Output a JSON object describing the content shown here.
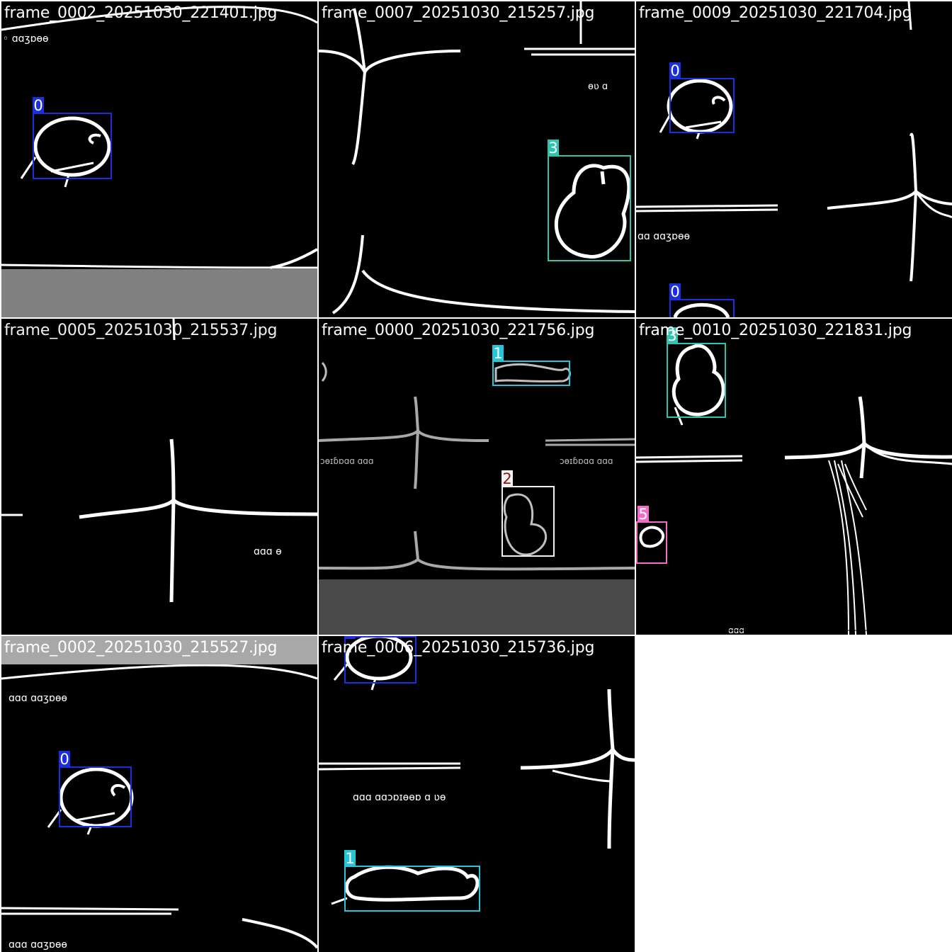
{
  "mosaic": {
    "tiles": [
      {
        "filename": "frame_0002_20251030_221401.jpg",
        "boxes": [
          {
            "class_id": "0",
            "color": "#1a2fe0"
          }
        ]
      },
      {
        "filename": "frame_0007_20251030_215257.jpg",
        "boxes": [
          {
            "class_id": "3",
            "color": "#2ec4b0"
          }
        ]
      },
      {
        "filename": "frame_0009_20251030_221704.jpg",
        "boxes": [
          {
            "class_id": "0",
            "color": "#1a2fe0"
          },
          {
            "class_id": "0",
            "color": "#1a2fe0"
          }
        ]
      },
      {
        "filename": "frame_0005_20251030_215537.jpg",
        "boxes": []
      },
      {
        "filename": "frame_0000_20251030_221756.jpg",
        "boxes": [
          {
            "class_id": "1",
            "color": "#26c6da"
          },
          {
            "class_id": "2",
            "color": "#f2f2f2",
            "label_color": "#8a1a12"
          }
        ]
      },
      {
        "filename": "frame_0010_20251030_221831.jpg",
        "boxes": [
          {
            "class_id": "3",
            "color": "#2ec4b0"
          },
          {
            "class_id": "5",
            "color": "#f06ec8"
          }
        ]
      },
      {
        "filename": "frame_0002_20251030_215527.jpg",
        "boxes": [
          {
            "class_id": "0",
            "color": "#1a2fe0"
          }
        ]
      },
      {
        "filename": "frame_0006_20251030_215736.jpg",
        "boxes": [
          {
            "class_id": "0",
            "color": "#1a2fe0"
          },
          {
            "class_id": "1",
            "color": "#26c6da"
          }
        ]
      }
    ]
  }
}
